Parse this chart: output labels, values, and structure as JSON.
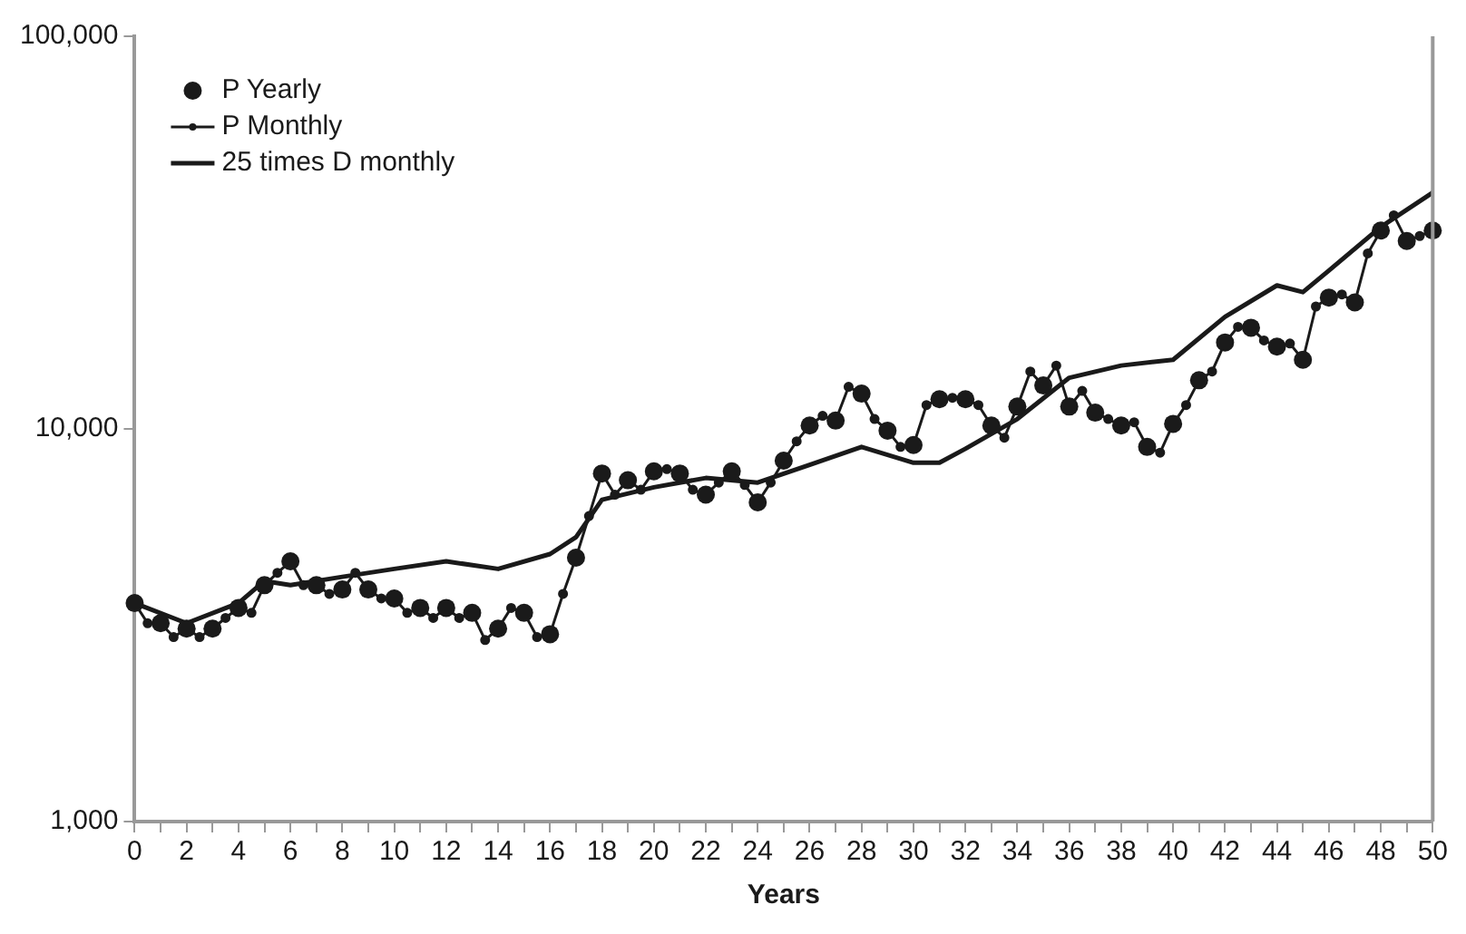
{
  "chart_data": {
    "type": "line",
    "xlabel": "Years",
    "log": "y",
    "grid": false,
    "legend": "top left",
    "xlim": [
      0,
      50
    ],
    "ylim": [
      1000,
      100000
    ],
    "xticks": [
      0,
      {
        "value": 1,
        "label": null
      },
      2,
      {
        "value": 3,
        "label": null
      },
      4,
      {
        "value": 5,
        "label": null
      },
      6,
      {
        "value": 7,
        "label": null
      },
      8,
      {
        "value": 9,
        "label": null
      },
      10,
      {
        "value": 11,
        "label": null
      },
      12,
      {
        "value": 13,
        "label": null
      },
      14,
      {
        "value": 15,
        "label": null
      },
      16,
      {
        "value": 17,
        "label": null
      },
      18,
      {
        "value": 19,
        "label": null
      },
      20,
      {
        "value": 21,
        "label": null
      },
      22,
      {
        "value": 23,
        "label": null
      },
      24,
      {
        "value": 25,
        "label": null
      },
      26,
      {
        "value": 27,
        "label": null
      },
      28,
      {
        "value": 29,
        "label": null
      },
      30,
      {
        "value": 31,
        "label": null
      },
      32,
      {
        "value": 33,
        "label": null
      },
      34,
      {
        "value": 35,
        "label": null
      },
      36,
      {
        "value": 37,
        "label": null
      },
      38,
      {
        "value": 39,
        "label": null
      },
      40,
      {
        "value": 41,
        "label": null
      },
      42,
      {
        "value": 43,
        "label": null
      },
      44,
      {
        "value": 45,
        "label": null
      },
      46,
      {
        "value": 47,
        "label": null
      },
      48,
      {
        "value": 49,
        "label": null
      },
      50
    ],
    "yticks": [
      {
        "value": 1000,
        "label": "1,000"
      },
      {
        "value": 10000,
        "label": "10,000"
      },
      {
        "value": 100000,
        "label": "100,000"
      }
    ],
    "series": [
      {
        "name": "P Yearly",
        "type": "scatter",
        "marker": "circle",
        "color": "#1a1a1a",
        "x": [
          0,
          1,
          2,
          3,
          4,
          5,
          6,
          7,
          8,
          9,
          10,
          11,
          12,
          13,
          14,
          15,
          16,
          17,
          18,
          19,
          20,
          21,
          22,
          23,
          24,
          25,
          26,
          27,
          28,
          29,
          30,
          31,
          32,
          33,
          34,
          35,
          36,
          37,
          38,
          39,
          40,
          41,
          42,
          43,
          44,
          45,
          46,
          47,
          48,
          49,
          50
        ],
        "values": [
          3600,
          3200,
          3100,
          3100,
          3500,
          4000,
          4600,
          4000,
          3900,
          3900,
          3700,
          3500,
          3500,
          3400,
          3100,
          3400,
          3000,
          4700,
          7700,
          7400,
          7800,
          7700,
          6800,
          7800,
          6500,
          8300,
          10200,
          10500,
          12300,
          9900,
          9100,
          11900,
          11900,
          10200,
          11400,
          12900,
          11400,
          11000,
          10200,
          9000,
          10300,
          13300,
          16600,
          18100,
          16200,
          15000,
          21600,
          21000,
          32000,
          30100,
          32000
        ]
      },
      {
        "name": "P Monthly",
        "type": "line",
        "marker": "circle",
        "line_style": "solid",
        "color": "#1a1a1a",
        "x": [
          0,
          0.5,
          1,
          1.5,
          2,
          2.5,
          3,
          3.5,
          4,
          4.5,
          5,
          5.5,
          6,
          6.5,
          7,
          7.5,
          8,
          8.5,
          9,
          9.5,
          10,
          10.5,
          11,
          11.5,
          12,
          12.5,
          13,
          13.5,
          14,
          14.5,
          15,
          15.5,
          16,
          16.5,
          17,
          17.5,
          18,
          18.5,
          19,
          19.5,
          20,
          20.5,
          21,
          21.5,
          22,
          22.5,
          23,
          23.5,
          24,
          24.5,
          25,
          25.5,
          26,
          26.5,
          27,
          27.5,
          28,
          28.5,
          29,
          29.5,
          30,
          30.5,
          31,
          31.5,
          32,
          32.5,
          33,
          33.5,
          34,
          34.5,
          35,
          35.5,
          36,
          36.5,
          37,
          37.5,
          38,
          38.5,
          39,
          39.5,
          40,
          40.5,
          41,
          41.5,
          42,
          42.5,
          43,
          43.5,
          44,
          44.5,
          45,
          45.5,
          46,
          46.5,
          47,
          47.5,
          48,
          48.5,
          49,
          49.5,
          50
        ],
        "values": [
          3600,
          3200,
          3200,
          2950,
          3100,
          2950,
          3100,
          3300,
          3500,
          3400,
          4000,
          4300,
          4600,
          4000,
          4000,
          3800,
          3900,
          4300,
          3900,
          3700,
          3700,
          3400,
          3500,
          3300,
          3500,
          3300,
          3400,
          2900,
          3100,
          3500,
          3400,
          2950,
          3000,
          3800,
          4700,
          6000,
          7700,
          6800,
          7400,
          7000,
          7800,
          7900,
          7700,
          7000,
          6800,
          7300,
          7800,
          7200,
          6500,
          7300,
          8300,
          9300,
          10200,
          10800,
          10500,
          12800,
          12300,
          10600,
          9900,
          9000,
          9100,
          11500,
          11900,
          12000,
          11900,
          11500,
          10200,
          9500,
          11400,
          14000,
          12900,
          14500,
          11400,
          12500,
          11000,
          10600,
          10200,
          10400,
          9000,
          8700,
          10300,
          11500,
          13300,
          14000,
          16600,
          18200,
          18100,
          16800,
          16200,
          16500,
          15000,
          20500,
          21600,
          22000,
          21000,
          28000,
          32000,
          35000,
          30100,
          31000,
          32000
        ]
      },
      {
        "name": "25 times D monthly",
        "type": "line",
        "marker": "none",
        "line_style": "solid",
        "color": "#1a1a1a",
        "x": [
          0,
          2,
          4,
          5,
          6,
          8,
          10,
          12,
          14,
          16,
          17,
          18,
          20,
          22,
          24,
          26,
          28,
          30,
          31,
          32,
          34,
          36,
          38,
          40,
          42,
          44,
          45,
          46,
          48,
          50
        ],
        "values": [
          3600,
          3200,
          3600,
          4100,
          4000,
          4200,
          4400,
          4600,
          4400,
          4800,
          5300,
          6600,
          7100,
          7500,
          7300,
          8100,
          9000,
          8200,
          8200,
          8900,
          10600,
          13500,
          14500,
          15000,
          19300,
          23200,
          22300,
          25300,
          32700,
          40000
        ]
      }
    ]
  }
}
